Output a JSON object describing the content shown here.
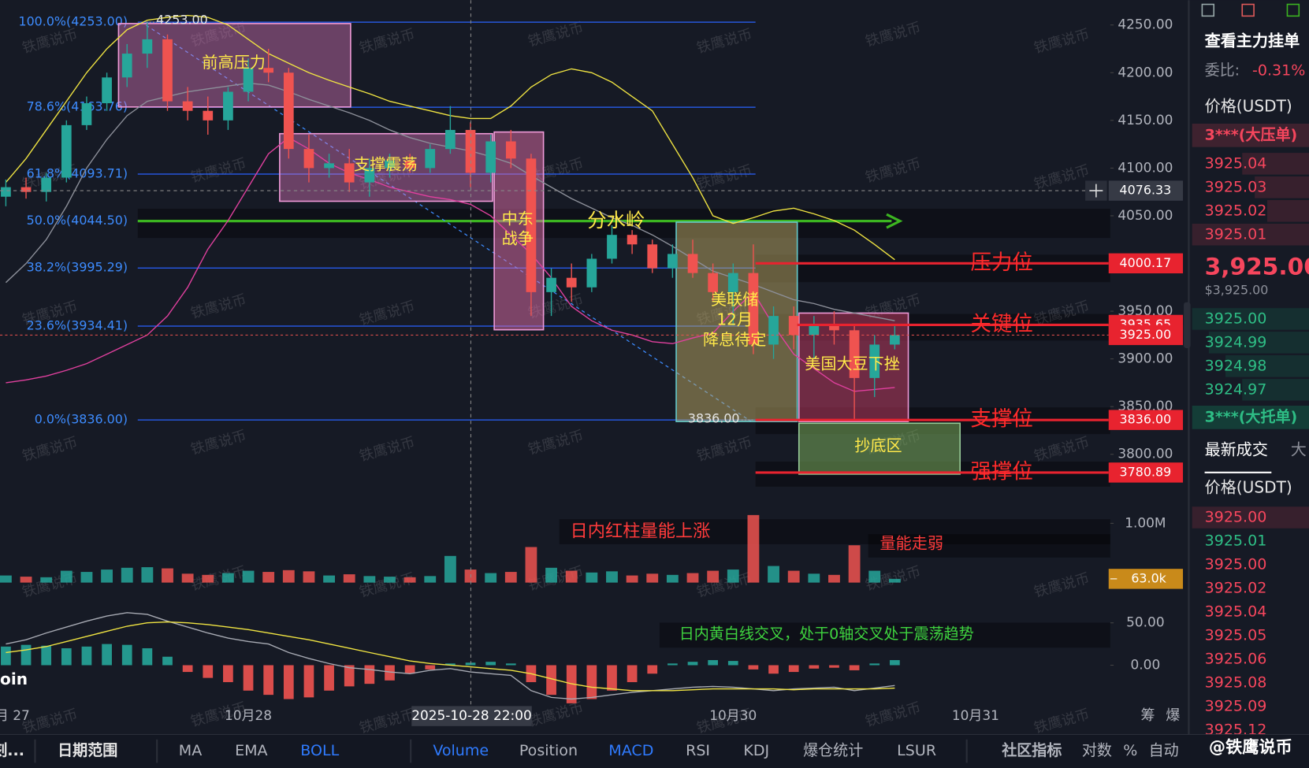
{
  "chart_data": {
    "type": "candlestick",
    "symbol_label": "oin",
    "categories": [
      "月 27",
      null,
      null,
      null,
      null,
      null,
      null,
      null,
      null,
      null,
      null,
      null,
      "10月28",
      null,
      null,
      null,
      null,
      null,
      null,
      null,
      null,
      null,
      null,
      null,
      null,
      null,
      null,
      null,
      null,
      null,
      null,
      null,
      null,
      null,
      null,
      null,
      "10月30",
      null,
      null,
      null,
      null,
      null,
      null,
      null,
      null,
      null,
      null,
      null,
      "10月31"
    ],
    "open": [
      4070,
      4080,
      4075,
      4090,
      4145,
      4168,
      4195,
      4220,
      4235,
      4170,
      4160,
      4150,
      4180,
      4205,
      4200,
      4120,
      4100,
      4105,
      4085,
      4100,
      4108,
      4100,
      4120,
      4140,
      4095,
      4128,
      4110,
      3970,
      3985,
      3975,
      4005,
      4030,
      4020,
      3995,
      4010,
      3990,
      3970,
      3990,
      3915,
      3945,
      3925,
      3935,
      3930,
      3880,
      3915,
      null,
      null,
      null,
      null
    ],
    "high": [
      4088,
      4090,
      4095,
      4150,
      4175,
      4200,
      4230,
      4253,
      4240,
      4185,
      4175,
      4185,
      4215,
      4225,
      4205,
      4135,
      4115,
      4120,
      4110,
      4115,
      4115,
      4125,
      4165,
      4148,
      4135,
      4140,
      4115,
      3995,
      4000,
      4010,
      4040,
      4035,
      4025,
      4020,
      4025,
      4000,
      4000,
      4020,
      3955,
      3955,
      3945,
      3950,
      3935,
      3925,
      3935,
      null,
      null,
      null,
      null
    ],
    "low": [
      4060,
      4068,
      4065,
      4085,
      4140,
      4160,
      4185,
      4205,
      4160,
      4150,
      4135,
      4140,
      4170,
      4190,
      4110,
      4085,
      4090,
      4075,
      4070,
      4090,
      4095,
      4095,
      4115,
      4080,
      4085,
      4100,
      3945,
      3945,
      3960,
      3970,
      4000,
      4010,
      3990,
      3985,
      3985,
      3960,
      3935,
      3905,
      3900,
      3910,
      3900,
      3915,
      3836,
      3860,
      3910,
      null,
      null,
      null,
      null
    ],
    "close": [
      4080,
      4075,
      4090,
      4145,
      4168,
      4195,
      4220,
      4235,
      4170,
      4160,
      4150,
      4180,
      4205,
      4200,
      4120,
      4100,
      4105,
      4085,
      4100,
      4108,
      4100,
      4120,
      4140,
      4095,
      4128,
      4110,
      3970,
      3985,
      3975,
      4005,
      4030,
      4020,
      3995,
      4010,
      3990,
      3970,
      3990,
      3915,
      3945,
      3925,
      3935,
      3930,
      3880,
      3915,
      3925,
      null,
      null,
      null,
      null
    ],
    "up_color": "#26a69a",
    "down_color": "#ef5350",
    "ylim": [
      3760,
      4276
    ],
    "yticks": [
      {
        "value": 4250,
        "label": "4250.00"
      },
      {
        "value": 4200,
        "label": "4200.00"
      },
      {
        "value": 4150,
        "label": "4150.00"
      },
      {
        "value": 4100,
        "label": "4100.00"
      },
      {
        "value": 4050,
        "label": "4050.00"
      },
      {
        "value": 4000,
        "label": "4000.00"
      },
      {
        "value": 3950,
        "label": "3950.00"
      },
      {
        "value": 3900,
        "label": "3900.00"
      },
      {
        "value": 3850,
        "label": "3850.00"
      },
      {
        "value": 3800,
        "label": "3800.00"
      }
    ],
    "boll": [
      {
        "color": "#f0e442",
        "values": [
          4085,
          4110,
          4140,
          4170,
          4200,
          4225,
          4245,
          4255,
          4258,
          4260,
          4258,
          4250,
          4235,
          4220,
          4210,
          4200,
          4192,
          4185,
          4178,
          4170,
          4165,
          4160,
          4155,
          4152,
          4152,
          4165,
          4185,
          4198,
          4204,
          4200,
          4190,
          4175,
          4160,
          4125,
          4090,
          4050,
          4042,
          4048,
          4055,
          4058,
          4052,
          4045,
          4035,
          4020,
          4004,
          null,
          null,
          null,
          null
        ]
      },
      {
        "color": "#8d909a",
        "values": [
          3980,
          4000,
          4025,
          4060,
          4100,
          4130,
          4155,
          4170,
          4175,
          4180,
          4183,
          4186,
          4189,
          4187,
          4180,
          4172,
          4165,
          4158,
          4150,
          4140,
          4132,
          4126,
          4122,
          4118,
          4112,
          4105,
          4092,
          4080,
          4068,
          4058,
          4048,
          4040,
          4030,
          4018,
          4005,
          3992,
          3985,
          3978,
          3970,
          3962,
          3958,
          3952,
          3948,
          3944,
          3940,
          null,
          null,
          null,
          null
        ]
      },
      {
        "color": "#e0409e",
        "values": [
          3875,
          3878,
          3882,
          3888,
          3895,
          3905,
          3915,
          3925,
          3945,
          3975,
          4015,
          4045,
          4080,
          4115,
          4132,
          4120,
          4105,
          4095,
          4088,
          4080,
          4075,
          4070,
          4067,
          4062,
          4050,
          4030,
          4010,
          3985,
          3955,
          3940,
          3930,
          3925,
          3918,
          3916,
          3922,
          3927,
          3950,
          3970,
          3935,
          3905,
          3890,
          3875,
          3866,
          3868,
          3870,
          null,
          null,
          null,
          null
        ]
      }
    ],
    "fib_levels": [
      {
        "value": 4253,
        "label": "100.0%(4253.00)",
        "color": "#2962ff"
      },
      {
        "value": 4163.76,
        "label": "78.6%(4163.76)",
        "color": "#2962ff"
      },
      {
        "value": 4093.71,
        "label": "61.8%(4093.71)",
        "color": "#2962ff"
      },
      {
        "value": 4044.5,
        "label": "50.0%(4044.50)",
        "color": "#3cb521"
      },
      {
        "value": 3995.29,
        "label": "38.2%(3995.29)",
        "color": "#2962ff"
      },
      {
        "value": 3934.41,
        "label": "23.6%(3934.41)",
        "color": "#2962ff"
      },
      {
        "value": 3836,
        "label": "0.0%(3836.00)",
        "color": "#2962ff"
      }
    ],
    "levels": [
      {
        "name": "压力位",
        "value": 4000.17,
        "label": "4000.17"
      },
      {
        "name": "关键位",
        "value": 3935.65,
        "label": "3935.65"
      },
      {
        "name": "支撑位",
        "value": 3836,
        "label": "3836.00"
      },
      {
        "name": "强撑位",
        "value": 3780.89,
        "label": "3780.89"
      }
    ],
    "level_color": "#e8232f",
    "last_price": {
      "value": 3925,
      "label": "3925.00"
    },
    "crosshair": {
      "x_label": "2025-10-28 22:00",
      "value": 4076.33,
      "label": "4076.33"
    },
    "high_marker": {
      "value": 4253,
      "label": "4253.00"
    },
    "low_marker": {
      "value": 3836,
      "label": "3836.00"
    },
    "annotations": {
      "prior_high": "前高压力",
      "support_range": "支撑震荡",
      "war": [
        "中东",
        "战争"
      ],
      "pivot": "分水岭",
      "fed": [
        "美联储",
        "12月",
        "降息待定"
      ],
      "soy": "美国大豆下挫",
      "bottom_zone": "抄底区",
      "volume_up": "日内红柱量能上涨",
      "volume_weak": "量能走弱",
      "macd_note": "日内黄白线交叉，处于0轴交叉处于震荡趋势"
    },
    "volume": {
      "values": [
        120000,
        100000,
        90000,
        200000,
        180000,
        220000,
        250000,
        260000,
        240000,
        150000,
        130000,
        160000,
        200000,
        180000,
        210000,
        190000,
        120000,
        140000,
        110000,
        100000,
        90000,
        110000,
        450000,
        220000,
        160000,
        180000,
        600000,
        250000,
        200000,
        170000,
        190000,
        120000,
        150000,
        130000,
        160000,
        200000,
        220000,
        1140000,
        280000,
        200000,
        150000,
        130000,
        630000,
        200000,
        63000,
        null,
        null,
        null,
        null
      ],
      "ylim": [
        0,
        1200000
      ],
      "yticks": [
        {
          "value": 1000000,
          "label": "1.00M"
        }
      ],
      "last": {
        "value": 63000,
        "label": "63.0k"
      }
    },
    "macd": {
      "histogram": [
        22,
        24,
        23,
        20,
        22,
        25,
        24,
        20,
        10,
        -8,
        -15,
        -20,
        -30,
        -35,
        -40,
        -38,
        -30,
        -25,
        -22,
        -18,
        -10,
        -5,
        2,
        3,
        4,
        2,
        -20,
        -35,
        -45,
        -40,
        -30,
        -20,
        -10,
        2,
        4,
        6,
        5,
        -5,
        -10,
        -8,
        -4,
        -3,
        -6,
        2,
        6,
        null,
        null,
        null,
        null
      ],
      "dif": {
        "color": "#a7aab3",
        "values": [
          25,
          30,
          38,
          45,
          52,
          58,
          62,
          60,
          52,
          45,
          38,
          32,
          28,
          25,
          15,
          8,
          2,
          -3,
          -5,
          -8,
          -10,
          -6,
          -4,
          -8,
          -10,
          -12,
          -30,
          -38,
          -40,
          -38,
          -35,
          -32,
          -30,
          -28,
          -26,
          -25,
          -26,
          -28,
          -30,
          -28,
          -27,
          -26,
          -30,
          -27,
          -24,
          null,
          null,
          null,
          null
        ]
      },
      "dea": {
        "color": "#f0e442",
        "values": [
          15,
          18,
          22,
          28,
          34,
          40,
          46,
          50,
          51,
          50,
          48,
          45,
          42,
          38,
          34,
          30,
          25,
          20,
          15,
          10,
          5,
          2,
          0,
          -2,
          -4,
          -6,
          -10,
          -16,
          -22,
          -26,
          -28,
          -30,
          -30,
          -30,
          -29,
          -28,
          -28,
          -28,
          -28,
          -29,
          -28,
          -28,
          -28,
          -28,
          -27,
          null,
          null,
          null,
          null
        ]
      },
      "ylim": [
        -66,
        66
      ],
      "yticks": [
        {
          "value": 50,
          "label": "50.00"
        },
        {
          "value": 0,
          "label": "0.00"
        }
      ]
    },
    "corner_labels": [
      "筹",
      "爆"
    ],
    "watermark": "铁鹰说币"
  },
  "order_book": {
    "title": "查看主力挂单",
    "ratio_label": "委比:",
    "ratio": "-0.31%",
    "price_header": "价格(USDT)",
    "big_ask": "3***(大压单)",
    "asks": [
      "3925.04",
      "3925.03",
      "3925.02",
      "3925.01"
    ],
    "last": "3,925.00",
    "last_usd": "$3,925.00",
    "bids": [
      "3925.00",
      "3924.99",
      "3924.98",
      "3924.97"
    ],
    "big_bid": "3***(大托单)"
  },
  "trades": {
    "tab": "最新成交",
    "tab2": "大",
    "price_header": "价格(USDT)",
    "prices": [
      "3925.00",
      "3925.01",
      "3925.00",
      "3925.02",
      "3925.04",
      "3925.05",
      "3925.06",
      "3925.08",
      "3925.09",
      "3925.12"
    ],
    "sides": [
      "sell",
      "buy",
      "sell",
      "sell",
      "sell",
      "sell",
      "sell",
      "sell",
      "sell",
      "sell"
    ]
  },
  "toolbar": {
    "cut": "刻...",
    "range": "日期范围",
    "items": [
      {
        "label": "MA",
        "active": false
      },
      {
        "label": "EMA",
        "active": false
      },
      {
        "label": "BOLL",
        "active": true
      },
      {
        "label": "Volume",
        "active": true
      },
      {
        "label": "Position",
        "active": false
      },
      {
        "label": "MACD",
        "active": true
      },
      {
        "label": "RSI",
        "active": false
      },
      {
        "label": "KDJ",
        "active": false
      },
      {
        "label": "爆仓统计",
        "active": false
      },
      {
        "label": "LSUR",
        "active": false
      },
      {
        "label": "社区指标",
        "active": false
      },
      {
        "label": "对数",
        "active": false
      },
      {
        "label": "%",
        "active": false
      },
      {
        "label": "自动",
        "active": false
      }
    ],
    "brand": "@铁鹰说币"
  }
}
